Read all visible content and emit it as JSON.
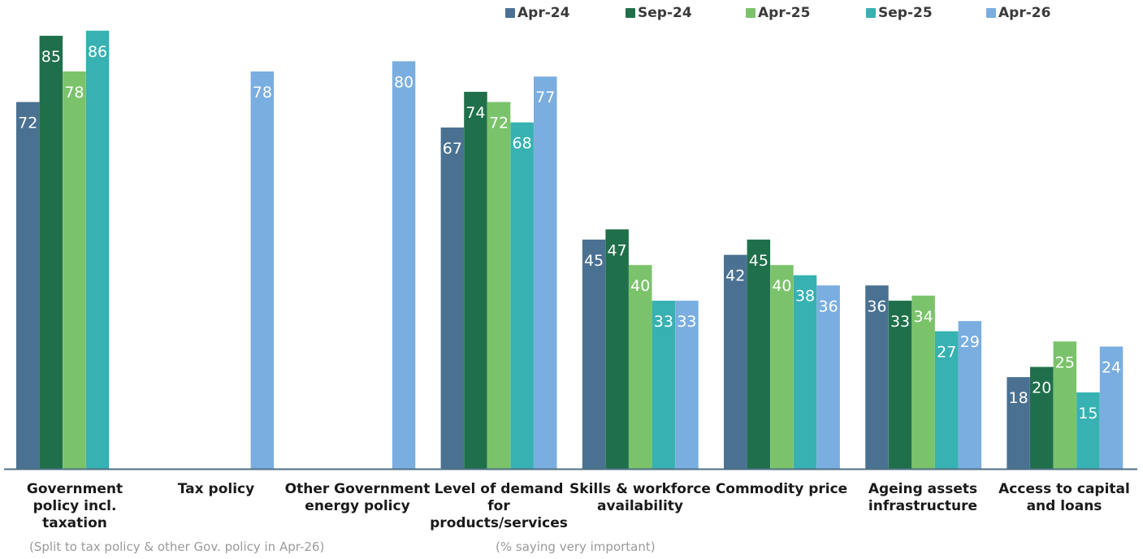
{
  "chart_data": {
    "type": "bar",
    "categories": [
      [
        "Government",
        "policy incl.",
        "taxation"
      ],
      [
        "Tax policy"
      ],
      [
        "Other Government",
        "energy policy"
      ],
      [
        "Level of demand",
        "for",
        "products/services"
      ],
      [
        "Skills  & workforce",
        "availability"
      ],
      [
        "Commodity price"
      ],
      [
        "Ageing assets",
        "infrastructure"
      ],
      [
        "Access to capital",
        "and loans"
      ]
    ],
    "series": [
      {
        "name": "Apr-24",
        "color": "#4a7191",
        "values": [
          72,
          null,
          null,
          67,
          45,
          42,
          36,
          18
        ]
      },
      {
        "name": "Sep-24",
        "color": "#1f704a",
        "values": [
          85,
          null,
          null,
          74,
          47,
          45,
          33,
          20
        ]
      },
      {
        "name": "Apr-25",
        "color": "#7bc36b",
        "values": [
          78,
          null,
          null,
          72,
          40,
          40,
          34,
          25
        ]
      },
      {
        "name": "Sep-25",
        "color": "#37b1b1",
        "values": [
          86,
          null,
          null,
          68,
          33,
          38,
          27,
          15
        ]
      },
      {
        "name": "Apr-26",
        "color": "#7aaee0",
        "values": [
          null,
          78,
          80,
          77,
          33,
          36,
          29,
          24
        ]
      }
    ],
    "ylim": [
      0,
      90
    ],
    "grid": false,
    "legend_position": "top-right",
    "notes": {
      "left": "(Split to tax policy & other Gov. policy in Apr-26)",
      "center": "(% saying very important)"
    }
  }
}
